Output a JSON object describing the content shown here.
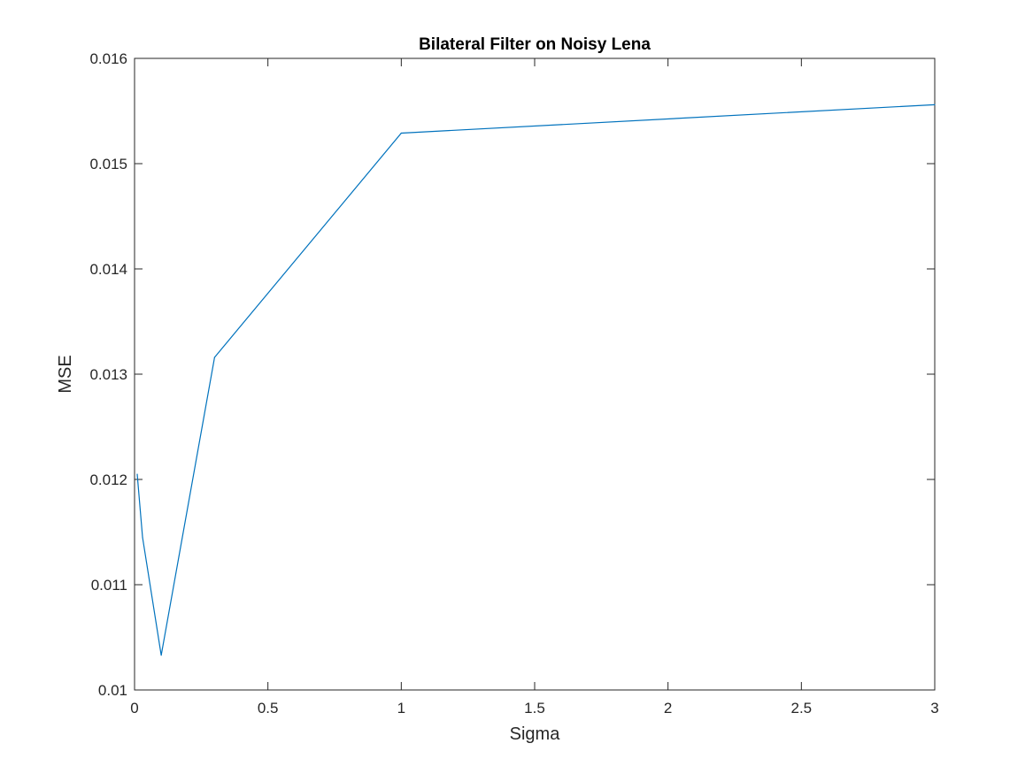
{
  "chart_data": {
    "type": "line",
    "title": "Bilateral Filter on Noisy Lena",
    "xlabel": "Sigma",
    "ylabel": "MSE",
    "xlim": [
      0,
      3
    ],
    "ylim": [
      0.01,
      0.016
    ],
    "xticks": [
      0,
      0.5,
      1,
      1.5,
      2,
      2.5,
      3
    ],
    "xtick_labels": [
      "0",
      "0.5",
      "1",
      "1.5",
      "2",
      "2.5",
      "3"
    ],
    "yticks": [
      0.01,
      0.011,
      0.012,
      0.013,
      0.014,
      0.015,
      0.016
    ],
    "ytick_labels": [
      "0.01",
      "0.011",
      "0.012",
      "0.013",
      "0.014",
      "0.015",
      "0.016"
    ],
    "grid": false,
    "series": [
      {
        "color": "#0072BD",
        "x": [
          0.01,
          0.03,
          0.1,
          0.3,
          1,
          3
        ],
        "y": [
          0.01205,
          0.01145,
          0.01033,
          0.01316,
          0.01529,
          0.01556
        ]
      }
    ]
  }
}
